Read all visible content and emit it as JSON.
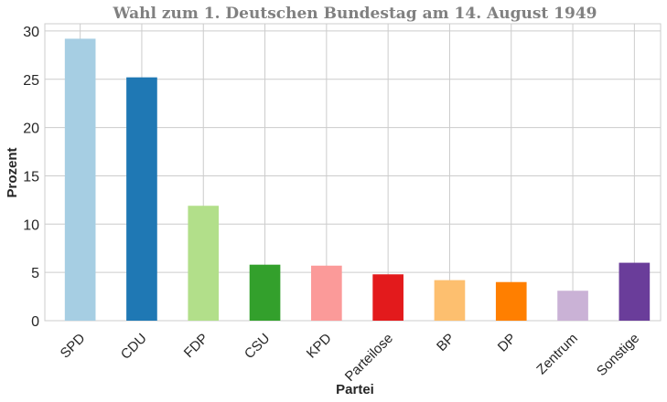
{
  "chart_data": {
    "type": "bar",
    "title": "Wahl zum 1. Deutschen Bundestag am 14. August 1949",
    "xlabel": "Partei",
    "ylabel": "Prozent",
    "categories": [
      "SPD",
      "CDU",
      "FDP",
      "CSU",
      "KPD",
      "Parteilose",
      "BP",
      "DP",
      "Zentrum",
      "Sonstige"
    ],
    "values": [
      29.2,
      25.2,
      11.9,
      5.8,
      5.7,
      4.8,
      4.2,
      4.0,
      3.1,
      6.0
    ],
    "colors": [
      "#a6cee3",
      "#1f78b4",
      "#b2df8a",
      "#33a02c",
      "#fb9a99",
      "#e31a1c",
      "#fdbf6f",
      "#ff7f00",
      "#cab2d6",
      "#6a3d9a"
    ],
    "ylim": [
      0,
      30.75
    ],
    "yticks": [
      0,
      5,
      10,
      15,
      20,
      25,
      30
    ],
    "grid": true,
    "xtick_rotation": 45
  }
}
